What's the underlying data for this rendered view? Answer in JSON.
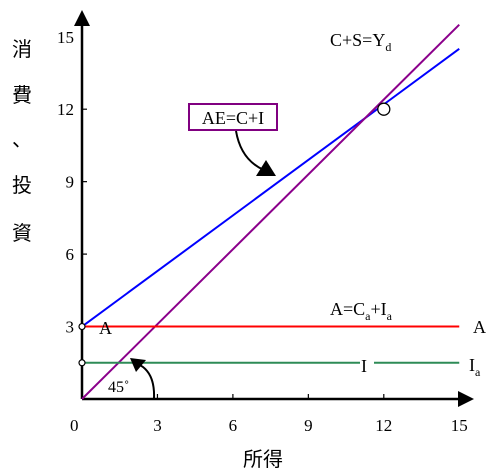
{
  "chart_data": {
    "type": "line",
    "title": "",
    "xlabel": "所得",
    "ylabel_chars": [
      "消",
      "費",
      "、",
      "投",
      "資"
    ],
    "xlim": [
      0,
      15
    ],
    "ylim": [
      0,
      15
    ],
    "x_ticks": [
      "0",
      "3",
      "6",
      "9",
      "12",
      "15"
    ],
    "y_ticks": [
      "3",
      "6",
      "9",
      "12",
      "15"
    ],
    "grid": false,
    "series": [
      {
        "key": "ae",
        "color": "#0000ff",
        "points": [
          [
            0,
            3
          ],
          [
            15,
            14.5
          ]
        ]
      },
      {
        "key": "45deg",
        "color": "#8b008b",
        "points": [
          [
            0,
            0
          ],
          [
            15,
            15.5
          ]
        ]
      },
      {
        "key": "autonomous",
        "color": "#ff0000",
        "points": [
          [
            0,
            3
          ],
          [
            15,
            3
          ]
        ]
      },
      {
        "key": "investment",
        "color": "#2e8b57",
        "points": [
          [
            0,
            1.5
          ],
          [
            15,
            1.5
          ]
        ]
      }
    ],
    "equilibrium_point": [
      12,
      12
    ],
    "annotations": {
      "csy_main": "C+S=Y",
      "csy_sub": "d",
      "ae_box": "AE=C+I",
      "a_eq_main": "A=C",
      "a_eq_sub1": "a",
      "a_eq_plus": "+I",
      "a_eq_sub2": "a",
      "a_left": "A",
      "a_right": "A",
      "i_mid": "I",
      "i_right_main": "I",
      "i_right_sub": "a",
      "angle": "45˚"
    },
    "colors": {
      "axis": "#000000",
      "ae_box_border": "#800080",
      "text": "#000000"
    }
  }
}
